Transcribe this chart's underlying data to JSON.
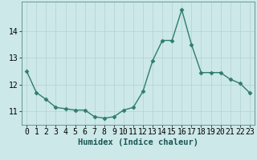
{
  "x": [
    0,
    1,
    2,
    3,
    4,
    5,
    6,
    7,
    8,
    9,
    10,
    11,
    12,
    13,
    14,
    15,
    16,
    17,
    18,
    19,
    20,
    21,
    22,
    23
  ],
  "y": [
    12.5,
    11.7,
    11.45,
    11.15,
    11.1,
    11.05,
    11.05,
    10.8,
    10.75,
    10.8,
    11.05,
    11.15,
    11.75,
    12.9,
    13.65,
    13.65,
    14.8,
    13.5,
    12.45,
    12.45,
    12.45,
    12.2,
    12.05,
    11.7
  ],
  "line_color": "#2e7d6e",
  "marker": "D",
  "marker_size": 2.5,
  "bg_color": "#cce8e8",
  "grid_color": "#b8d4d4",
  "xlabel": "Humidex (Indice chaleur)",
  "yticks": [
    11,
    12,
    13,
    14
  ],
  "xtick_labels": [
    "0",
    "1",
    "2",
    "3",
    "4",
    "5",
    "6",
    "7",
    "8",
    "9",
    "10",
    "11",
    "12",
    "13",
    "14",
    "15",
    "16",
    "17",
    "18",
    "19",
    "20",
    "21",
    "22",
    "23"
  ],
  "ylim": [
    10.5,
    15.1
  ],
  "xlim": [
    -0.5,
    23.5
  ],
  "xlabel_fontsize": 7.5,
  "tick_fontsize": 7.0
}
